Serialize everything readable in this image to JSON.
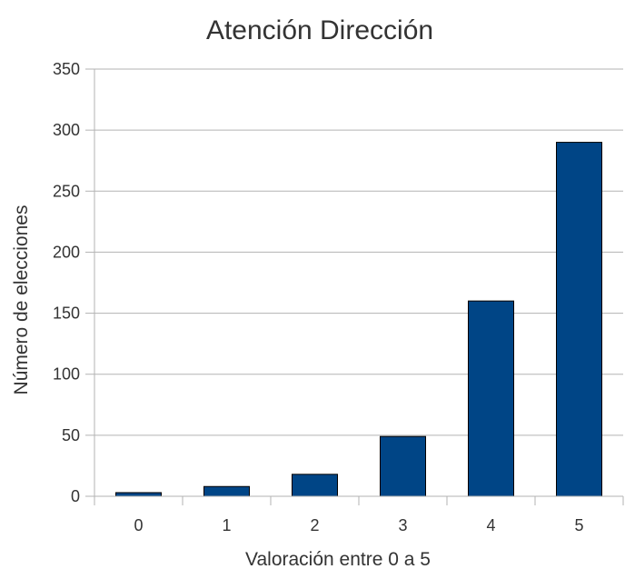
{
  "chart_data": {
    "type": "bar",
    "title": "Atención Dirección",
    "xlabel": "Valoración entre 0 a 5",
    "ylabel": "Número de elecciones",
    "categories": [
      "0",
      "1",
      "2",
      "3",
      "4",
      "5"
    ],
    "values": [
      3,
      8,
      18,
      49,
      160,
      290
    ],
    "ylim": [
      0,
      350
    ],
    "yticks": [
      0,
      50,
      100,
      150,
      200,
      250,
      300,
      350
    ],
    "grid": true,
    "legend": "none",
    "bar_color": "#004586"
  }
}
